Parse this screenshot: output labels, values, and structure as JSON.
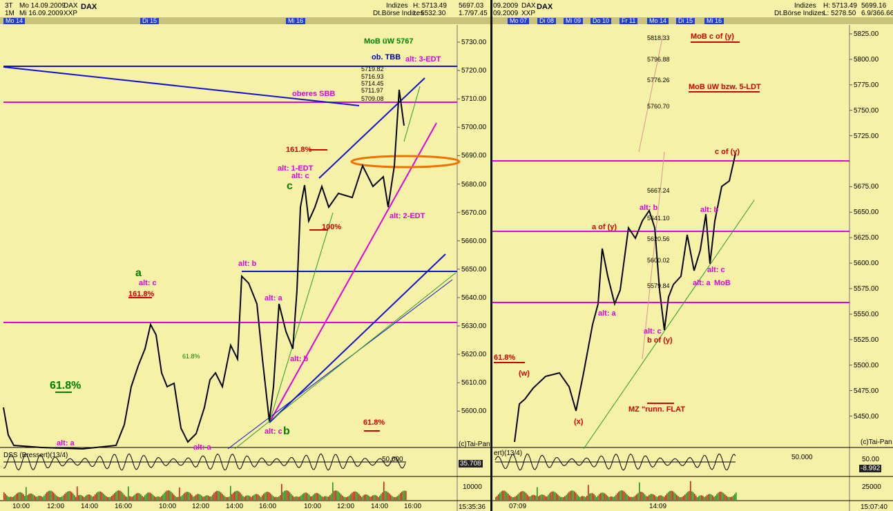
{
  "left": {
    "header": [
      "3T",
      "Mo 14.09.2009",
      "DAX",
      "DAX",
      "1M",
      "Mi 16.09.2009",
      "XXP",
      "Indizes",
      "Dt.Börse Indizes",
      "H: 5713.49",
      "L: 5532.30",
      "5697.03",
      "1.7/97.45"
    ],
    "days": [
      "Mo 14",
      "Di 15",
      "Mi 16"
    ],
    "price_axis": [
      "5730.00",
      "5720.00",
      "5710.00",
      "5700.00",
      "5690.00",
      "5680.00",
      "5670.00",
      "5660.00",
      "5650.00",
      "5640.00",
      "5630.00",
      "5620.00",
      "5610.00",
      "5600.00"
    ],
    "time_axis": [
      "10:00",
      "12:00",
      "14:00",
      "16:00",
      "10:00",
      "12:00",
      "14:00",
      "16:00",
      "10:00",
      "12:00",
      "14:00",
      "16:00"
    ],
    "annotations": [
      "MoB üW 5767",
      "ob. TBB",
      "alt: 3-EDT",
      "oberes SBB",
      "5719.82",
      "5716.93",
      "5714.45",
      "5711.97",
      "5709.08",
      "161.8%",
      "alt: 1-EDT",
      "alt: c",
      "c",
      "100%",
      "alt: 2-EDT",
      "alt: b",
      "a",
      "alt: c",
      "161.8%",
      "alt: a",
      "61.8%",
      "alt: b",
      "61.8%",
      "61.8%",
      "alt: c",
      "b",
      "alt: a",
      "alt: a"
    ],
    "footer": [
      "(c)Tai-Pan",
      "DSS (Bressert)(13/4)",
      "50.000",
      "35.708",
      "10000",
      "15:35:36"
    ]
  },
  "right": {
    "header": [
      "09.2009",
      "DAX",
      "DAX",
      "09.2009",
      "XXP",
      "Indizes",
      "Dt.Börse Indizes",
      "H: 5713.49",
      "L: 5278.50",
      "5699.16",
      "6.9/366.66"
    ],
    "days": [
      "Mo 07",
      "Di 08",
      "Mi 09",
      "Do 10",
      "Fr 11",
      "Mo 14",
      "Di 15",
      "Mi 16"
    ],
    "price_axis": [
      "5825.00",
      "5800.00",
      "5775.00",
      "5750.00",
      "5725.00",
      "5675.00",
      "5650.00",
      "5625.00",
      "5600.00",
      "5575.00",
      "5550.00",
      "5525.00",
      "5500.00",
      "5475.00",
      "5450.00"
    ],
    "time_axis": [
      "07:09",
      "14:09"
    ],
    "annotations": [
      "MoB c of (y)",
      "MoB üW bzw. 5-LDT",
      "5818.33",
      "5796.88",
      "5776.26",
      "5760.70",
      "c of (y)",
      "5667.24",
      "alt: b",
      "alt: b",
      "5641.10",
      "a of (y)",
      "5620.56",
      "5600.02",
      "alt: c",
      "alt: a",
      "MoB",
      "5579.84",
      "alt: a",
      "alt: c",
      "b of (y)",
      "61.8%",
      "(w)",
      "MZ \"runn. FLAT",
      "(x)"
    ],
    "footer": [
      "(c)Tai-Pan",
      "ert)(13/4)",
      "50.000",
      "50.00",
      "-8.992",
      "25000",
      "15:07:40"
    ]
  }
}
